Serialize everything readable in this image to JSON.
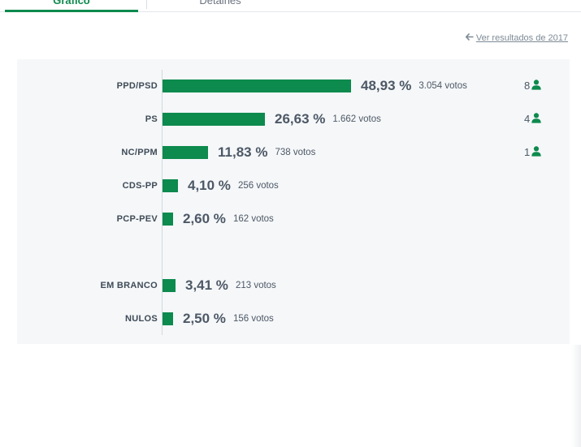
{
  "tabs": {
    "active": "Gráfico",
    "other": "Detalhes"
  },
  "prev_results": {
    "arrow": "🡐",
    "label": "Ver resultados de 2017"
  },
  "colors": {
    "bar": "#0d8a4e",
    "accent": "#0d8a4e"
  },
  "votes_suffix": "votos",
  "chart_data": {
    "type": "bar",
    "orientation": "horizontal",
    "categories": [
      "PPD/PSD",
      "PS",
      "NC/PPM",
      "CDS-PP",
      "PCP-PEV",
      "EM BRANCO",
      "NULOS"
    ],
    "percent_labels": [
      "48,93 %",
      "26,63 %",
      "11,83 %",
      "4,10 %",
      "2,60 %",
      "3,41 %",
      "2,50 %"
    ],
    "values": [
      48.93,
      26.63,
      11.83,
      4.1,
      2.6,
      3.41,
      2.5
    ],
    "votes_labels": [
      "3.054 votos",
      "1.662 votos",
      "738 votos",
      "256 votos",
      "162 votos",
      "213 votos",
      "156 votos"
    ],
    "votes": [
      3054,
      1662,
      738,
      256,
      162,
      213,
      156
    ],
    "seats": [
      8,
      4,
      1,
      null,
      null,
      null,
      null
    ],
    "xlim": [
      0,
      100
    ],
    "grid": false,
    "legend": "none"
  }
}
